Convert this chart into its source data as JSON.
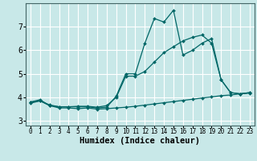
{
  "background_color": "#c8e8e8",
  "grid_color": "#ffffff",
  "line_color": "#006666",
  "xlabel": "Humidex (Indice chaleur)",
  "xlim": [
    -0.5,
    23.5
  ],
  "ylim": [
    2.8,
    8.0
  ],
  "yticks": [
    3,
    4,
    5,
    6,
    7
  ],
  "xticks": [
    0,
    1,
    2,
    3,
    4,
    5,
    6,
    7,
    8,
    9,
    10,
    11,
    12,
    13,
    14,
    15,
    16,
    17,
    18,
    19,
    20,
    21,
    22,
    23
  ],
  "series": [
    {
      "x": [
        0,
        1,
        2,
        3,
        4,
        5,
        6,
        7,
        8,
        9,
        10,
        11,
        12,
        13,
        14,
        15,
        16,
        17,
        18,
        19,
        20,
        21,
        22,
        23
      ],
      "y": [
        3.8,
        3.9,
        3.65,
        3.55,
        3.55,
        3.52,
        3.55,
        3.5,
        3.52,
        3.55,
        3.58,
        3.62,
        3.67,
        3.72,
        3.77,
        3.82,
        3.87,
        3.92,
        3.97,
        4.02,
        4.07,
        4.1,
        4.15,
        4.18
      ]
    },
    {
      "x": [
        0,
        1,
        2,
        3,
        4,
        5,
        6,
        7,
        8,
        9,
        10,
        11,
        12,
        13,
        14,
        15,
        16,
        17,
        18,
        19,
        20,
        21,
        22,
        23
      ],
      "y": [
        3.8,
        3.85,
        3.65,
        3.6,
        3.6,
        3.6,
        3.6,
        3.55,
        3.58,
        4.05,
        5.0,
        5.0,
        6.3,
        7.35,
        7.2,
        7.7,
        5.8,
        6.0,
        6.3,
        6.5,
        4.75,
        4.2,
        4.15,
        4.2
      ]
    },
    {
      "x": [
        0,
        1,
        2,
        3,
        4,
        5,
        6,
        7,
        8,
        9,
        10,
        11,
        12,
        13,
        14,
        15,
        16,
        17,
        18,
        19,
        20,
        21,
        22,
        23
      ],
      "y": [
        3.75,
        3.85,
        3.68,
        3.6,
        3.6,
        3.62,
        3.62,
        3.58,
        3.65,
        4.0,
        4.9,
        4.9,
        5.1,
        5.5,
        5.9,
        6.15,
        6.4,
        6.55,
        6.65,
        6.3,
        4.75,
        4.2,
        4.15,
        4.2
      ]
    }
  ],
  "marker": "D",
  "markersize": 2.0,
  "linewidth": 0.9,
  "xlabel_fontsize": 7.5,
  "ytick_fontsize": 7,
  "xtick_fontsize": 5.5
}
